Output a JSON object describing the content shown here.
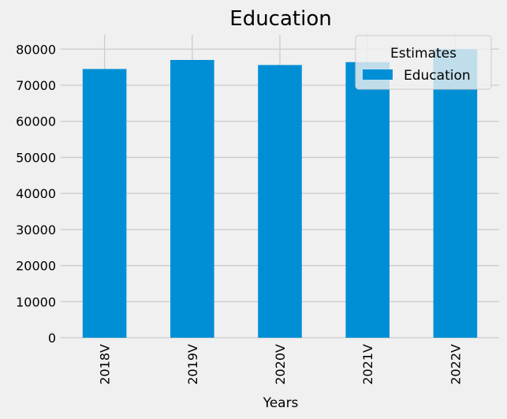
{
  "chart_data": {
    "type": "bar",
    "title": "Education",
    "xlabel": "Years",
    "ylabel": "",
    "categories": [
      "2018V",
      "2019V",
      "2020V",
      "2021V",
      "2022V"
    ],
    "series": [
      {
        "name": "Education",
        "values": [
          74500,
          77000,
          75600,
          76400,
          80000
        ]
      }
    ],
    "ylim": [
      0,
      84000
    ],
    "yticks": [
      "0",
      "10000",
      "20000",
      "30000",
      "40000",
      "50000",
      "60000",
      "70000",
      "80000"
    ],
    "grid": true,
    "legend": {
      "title": "Estimates",
      "placement": "top-right"
    },
    "colors": {
      "bar": "#008fd5",
      "background": "#f0f0f0",
      "grid": "#cbcbcb"
    }
  }
}
